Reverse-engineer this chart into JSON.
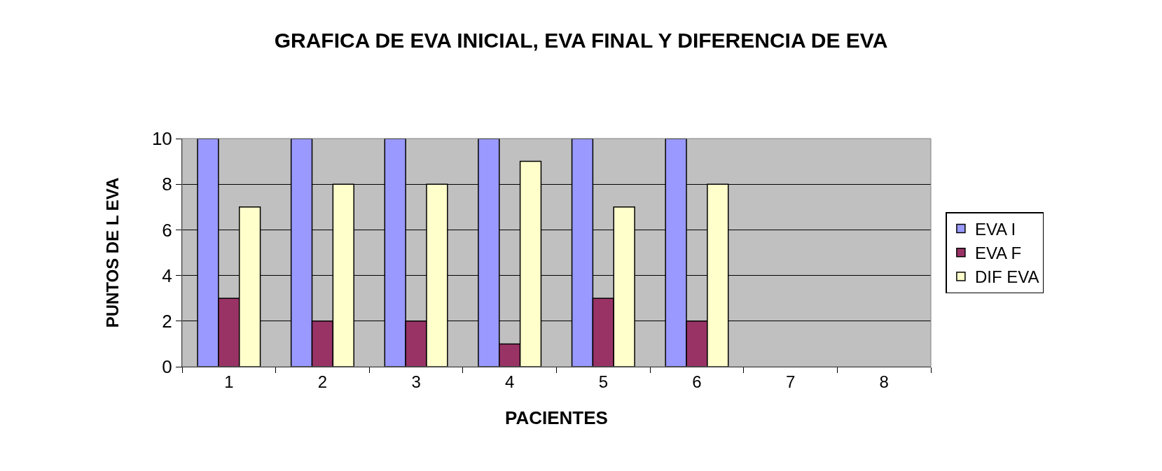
{
  "chart_data": {
    "type": "bar",
    "title": "GRAFICA DE EVA INICIAL, EVA FINAL Y DIFERENCIA DE EVA",
    "xlabel": "PACIENTES",
    "ylabel": "PUNTOS DE L EVA",
    "categories": [
      "1",
      "2",
      "3",
      "4",
      "5",
      "6",
      "7",
      "8"
    ],
    "series": [
      {
        "name": "EVA I",
        "color": "#9999ff",
        "values": [
          10,
          10,
          10,
          10,
          10,
          10,
          null,
          null
        ]
      },
      {
        "name": "EVA F",
        "color": "#993366",
        "values": [
          3,
          2,
          2,
          1,
          3,
          2,
          null,
          null
        ]
      },
      {
        "name": "DIF EVA",
        "color": "#ffffcc",
        "values": [
          7,
          8,
          8,
          9,
          7,
          8,
          null,
          null
        ]
      }
    ],
    "ylim": [
      0,
      10
    ],
    "yticks": [
      0,
      2,
      4,
      6,
      8,
      10
    ],
    "grid": "y",
    "legend": "right"
  }
}
